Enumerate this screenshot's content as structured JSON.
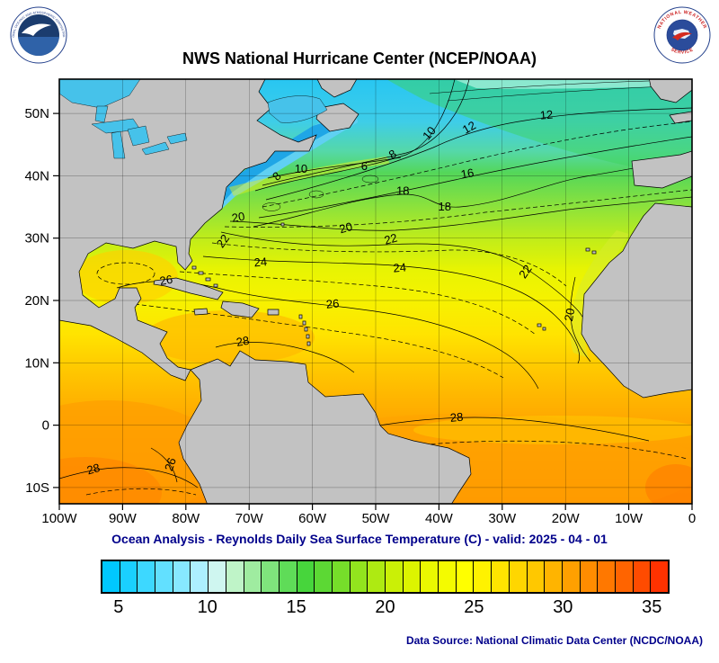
{
  "header": {
    "title": "NWS National Hurricane Center (NCEP/NOAA)",
    "noaa_logo": {
      "ring_top": "NATIONAL OCEANIC AND ATMOSPHERIC ADMINISTRATION",
      "ring_bottom": "U.S. DEPARTMENT OF COMMERCE"
    },
    "nws_logo": {
      "ring_top": "NATIONAL WEATHER",
      "ring_bottom": "SERVICE"
    }
  },
  "map": {
    "lat_ticks": [
      {
        "label": "50N",
        "lat": 50
      },
      {
        "label": "40N",
        "lat": 40
      },
      {
        "label": "30N",
        "lat": 30
      },
      {
        "label": "20N",
        "lat": 20
      },
      {
        "label": "10N",
        "lat": 10
      },
      {
        "label": "0",
        "lat": 0
      },
      {
        "label": "10S",
        "lat": -10
      }
    ],
    "lon_ticks": [
      {
        "label": "100W",
        "lon": -100
      },
      {
        "label": "90W",
        "lon": -90
      },
      {
        "label": "80W",
        "lon": -80
      },
      {
        "label": "70W",
        "lon": -70
      },
      {
        "label": "60W",
        "lon": -60
      },
      {
        "label": "50W",
        "lon": -50
      },
      {
        "label": "40W",
        "lon": -40
      },
      {
        "label": "30W",
        "lon": -30
      },
      {
        "label": "20W",
        "lon": -20
      },
      {
        "label": "10W",
        "lon": -10
      },
      {
        "label": "0",
        "lon": 0
      }
    ],
    "contour_labels": [
      {
        "v": "10",
        "lon": -61.8,
        "lat": 41.1,
        "a": 0
      },
      {
        "v": "8",
        "lon": -65.6,
        "lat": 39.9,
        "a": -45
      },
      {
        "v": "6",
        "lon": -51.8,
        "lat": 41.5,
        "a": 0
      },
      {
        "v": "8",
        "lon": -47.3,
        "lat": 43.4,
        "a": -30
      },
      {
        "v": "10",
        "lon": -41.5,
        "lat": 46.8,
        "a": -50
      },
      {
        "v": "12",
        "lon": -35.2,
        "lat": 47.7,
        "a": -30
      },
      {
        "v": "12",
        "lon": -23.0,
        "lat": 49.7,
        "a": -5
      },
      {
        "v": "16",
        "lon": -35.5,
        "lat": 40.3,
        "a": -10
      },
      {
        "v": "18",
        "lon": -45.7,
        "lat": 37.5,
        "a": 0
      },
      {
        "v": "18",
        "lon": -39.1,
        "lat": 35.0,
        "a": 0
      },
      {
        "v": "20",
        "lon": -71.7,
        "lat": 33.3,
        "a": -10
      },
      {
        "v": "20",
        "lon": -54.7,
        "lat": 31.6,
        "a": -15
      },
      {
        "v": "22",
        "lon": -74.1,
        "lat": 29.5,
        "a": -55
      },
      {
        "v": "22",
        "lon": -47.6,
        "lat": 29.8,
        "a": -15
      },
      {
        "v": "24",
        "lon": -68.2,
        "lat": 26.1,
        "a": -5
      },
      {
        "v": "24",
        "lon": -46.2,
        "lat": 25.2,
        "a": -5
      },
      {
        "v": "22",
        "lon": -26.3,
        "lat": 24.6,
        "a": -55
      },
      {
        "v": "26",
        "lon": -83.1,
        "lat": 23.2,
        "a": -10
      },
      {
        "v": "26",
        "lon": -56.8,
        "lat": 19.4,
        "a": -5
      },
      {
        "v": "20",
        "lon": -19.3,
        "lat": 17.7,
        "a": -80
      },
      {
        "v": "28",
        "lon": -71.0,
        "lat": 13.4,
        "a": -10
      },
      {
        "v": "28",
        "lon": -37.2,
        "lat": 1.2,
        "a": -5
      },
      {
        "v": "28",
        "lon": -94.6,
        "lat": -7.1,
        "a": -15
      },
      {
        "v": "26",
        "lon": -82.4,
        "lat": -6.3,
        "a": -70
      }
    ]
  },
  "caption": "Ocean Analysis - Reynolds Daily Sea Surface Temperature (C) - valid: 2025 - 04 - 01",
  "colorbar": {
    "min": 4,
    "max": 36,
    "labels": [
      "5",
      "10",
      "15",
      "20",
      "25",
      "30",
      "35"
    ],
    "label_values": [
      5,
      10,
      15,
      20,
      25,
      30,
      35
    ],
    "colors": [
      "#00C8FF",
      "#1AD0FF",
      "#3DD8FF",
      "#62E0FF",
      "#87E8FF",
      "#ADEFFF",
      "#CFF6F0",
      "#BFF4C8",
      "#9FECA0",
      "#7FE47C",
      "#5FDC58",
      "#47D53C",
      "#5CD834",
      "#76DE2A",
      "#92E41E",
      "#AEEA12",
      "#CAF006",
      "#DCF400",
      "#EAF800",
      "#F4FB00",
      "#FFFF00",
      "#FFF200",
      "#FFE400",
      "#FFD600",
      "#FFC800",
      "#FFB400",
      "#FFA000",
      "#FF8C00",
      "#FF7800",
      "#FF6400",
      "#FF4B00",
      "#FF3200"
    ]
  },
  "footer": {
    "data_source": "Data Source: National Climatic Data Center (NCDC/NOAA)"
  },
  "chart_data": {
    "type": "heatmap",
    "title": "NWS National Hurricane Center (NCEP/NOAA)",
    "subtitle": "Ocean Analysis - Reynolds Daily Sea Surface Temperature (C) - valid: 2025 - 04 - 01",
    "variable": "Sea Surface Temperature",
    "units": "C",
    "valid_date": "2025 - 04 - 01",
    "x_axis": {
      "label_type": "longitude",
      "ticks": [
        "100W",
        "90W",
        "80W",
        "70W",
        "60W",
        "50W",
        "40W",
        "30W",
        "20W",
        "10W",
        "0"
      ]
    },
    "y_axis": {
      "label_type": "latitude",
      "ticks": [
        "10S",
        "0",
        "10N",
        "20N",
        "30N",
        "40N",
        "50N"
      ]
    },
    "colorbar_range": [
      4,
      36
    ],
    "colorbar_labeled_ticks": [
      5,
      10,
      15,
      20,
      25,
      30,
      35
    ],
    "contour_interval": 1,
    "labeled_contour_values": [
      6,
      8,
      10,
      12,
      16,
      18,
      20,
      22,
      24,
      26,
      28
    ],
    "data_source": "National Climatic Data Center (NCDC/NOAA)"
  }
}
